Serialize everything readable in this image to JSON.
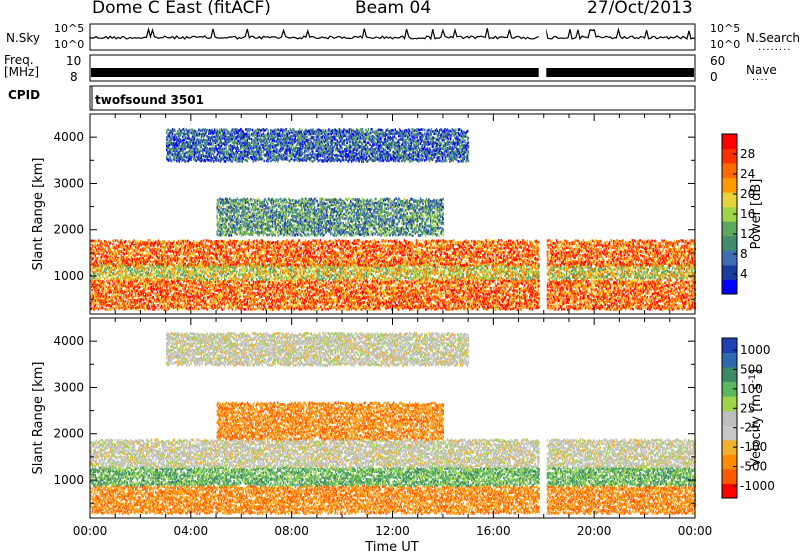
{
  "header": {
    "station": "Dome C East (fitACF)",
    "beam": "Beam 04",
    "date": "27/Oct/2013"
  },
  "strips": {
    "nsky_label": "N.Sky",
    "nsky_top": "10^5",
    "nsky_bottom": "10^0",
    "nsearch_label": "N.Search",
    "nsearch_top": "10^5",
    "nsearch_bottom": "10^0",
    "freq_label_1": "Freq.",
    "freq_label_2": "[MHz]",
    "freq_top": "10",
    "freq_bottom": "8",
    "nave_label": "Nave",
    "nave_top": "60",
    "nave_bottom": "0",
    "cpid_label": "CPID",
    "cpid_value": "twofsound 3501"
  },
  "colors": {
    "power": [
      "#0000ff",
      "#1a3c9e",
      "#3f6db3",
      "#3f8d6e",
      "#5ea55e",
      "#9fd34a",
      "#e6d43a",
      "#ff9a00",
      "#ff6a00",
      "#ff3000",
      "#ff0000"
    ],
    "velocity": [
      "#1f3fb5",
      "#2e6ab0",
      "#3f8a66",
      "#5cb85c",
      "#9fd34a",
      "#bdbdbd",
      "#c8c8c8",
      "#f0b030",
      "#ff8c00",
      "#ff5a00",
      "#ff0000"
    ]
  },
  "chart_data": [
    {
      "type": "heatmap",
      "name": "power-panel",
      "ylabel": "Slant Range [km]",
      "xlabel": "",
      "x_ticks": [
        "00:00",
        "04:00",
        "08:00",
        "12:00",
        "16:00",
        "20:00",
        "00:00"
      ],
      "x_range_hours": [
        0,
        24
      ],
      "y_ticks": [
        1000,
        2000,
        3000,
        4000
      ],
      "ylim": [
        180,
        4500
      ],
      "colorbar": {
        "label": "Power [dB]",
        "ticks": [
          4,
          8,
          12,
          16,
          20,
          24,
          28
        ],
        "range": [
          0,
          32
        ]
      },
      "data_gap_hours": [
        17.8,
        18.1
      ],
      "bands_km": [
        {
          "range": [
            300,
            950
          ],
          "t": [
            0,
            24
          ],
          "level_db": 26
        },
        {
          "range": [
            950,
            1300
          ],
          "t": [
            0,
            24
          ],
          "level_db": 18
        },
        {
          "range": [
            1250,
            1800
          ],
          "t": [
            0,
            24
          ],
          "level_db": 26
        },
        {
          "range": [
            1900,
            2700
          ],
          "t": [
            5,
            14
          ],
          "level_db": 10
        },
        {
          "range": [
            3500,
            4200
          ],
          "t": [
            3,
            15
          ],
          "level_db": 6
        }
      ]
    },
    {
      "type": "heatmap",
      "name": "velocity-panel",
      "ylabel": "Slant Range [km]",
      "xlabel": "Time UT",
      "x_ticks": [
        "00:00",
        "04:00",
        "08:00",
        "12:00",
        "16:00",
        "20:00",
        "00:00"
      ],
      "x_range_hours": [
        0,
        24
      ],
      "y_ticks": [
        1000,
        2000,
        3000,
        4000
      ],
      "ylim": [
        180,
        4500
      ],
      "colorbar": {
        "label": "Velocity [m s^-1]",
        "ticks": [
          1000,
          500,
          100,
          25,
          -25,
          -100,
          -500,
          -1000
        ]
      },
      "data_gap_hours": [
        17.8,
        18.1
      ],
      "bands_km": [
        {
          "range": [
            300,
            900
          ],
          "t": [
            0,
            24
          ],
          "velocity": -100
        },
        {
          "range": [
            900,
            1300
          ],
          "t": [
            0,
            24
          ],
          "velocity": 100
        },
        {
          "range": [
            1300,
            1900
          ],
          "t": [
            0,
            24
          ],
          "velocity": 0
        },
        {
          "range": [
            1900,
            2700
          ],
          "t": [
            5,
            14
          ],
          "velocity": -100
        },
        {
          "range": [
            3500,
            4200
          ],
          "t": [
            3,
            15
          ],
          "velocity": 0
        }
      ]
    }
  ]
}
